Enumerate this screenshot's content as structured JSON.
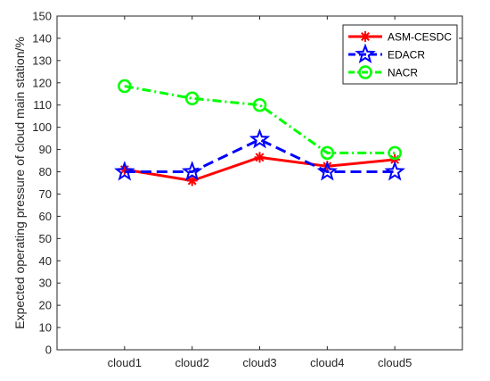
{
  "chart_data": {
    "type": "line",
    "title": "",
    "xlabel": "",
    "ylabel": "Expected operating pressure of cloud main station/%",
    "categories": [
      "cloud1",
      "cloud2",
      "cloud3",
      "cloud4",
      "cloud5"
    ],
    "ylim": [
      0,
      150
    ],
    "yticks": [
      0,
      10,
      20,
      30,
      40,
      50,
      60,
      70,
      80,
      90,
      100,
      110,
      120,
      130,
      140,
      150
    ],
    "grid": false,
    "legend_position": "top-right",
    "series": [
      {
        "name": "ASM-CESDC",
        "values": [
          81,
          76,
          86.5,
          82.5,
          85.5
        ],
        "color": "#ff0000",
        "line_style": "solid",
        "marker": "asterisk"
      },
      {
        "name": "EDACR",
        "values": [
          80,
          80,
          94.5,
          80,
          80
        ],
        "color": "#0000ff",
        "line_style": "dashed",
        "marker": "pentagram"
      },
      {
        "name": "NACR",
        "values": [
          118.5,
          113,
          110,
          88.5,
          88.5
        ],
        "color": "#00ff00",
        "line_style": "dash-dot",
        "marker": "circle"
      }
    ]
  }
}
